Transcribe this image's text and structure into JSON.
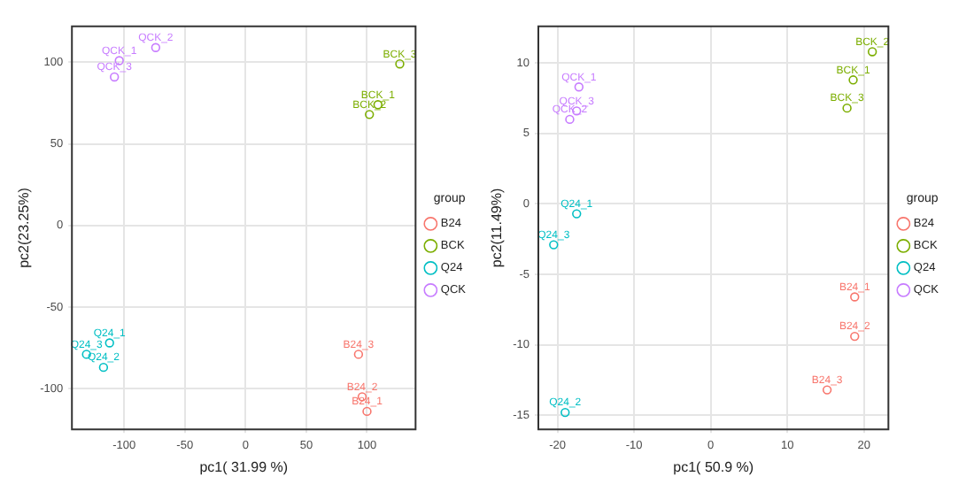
{
  "chart_data": [
    {
      "type": "scatter",
      "xlabel": "pc1( 31.99 %)",
      "ylabel": "pc2(23.25%)",
      "legend_title": "group",
      "legend": "right",
      "grid": true,
      "marker": "circle",
      "xlim": [
        -143,
        140
      ],
      "ylim": [
        -125,
        122
      ],
      "xticks": [
        -100,
        -50,
        0,
        50,
        100
      ],
      "yticks": [
        -100,
        -50,
        0,
        50,
        100
      ],
      "series": [
        {
          "name": "B24",
          "color": "#f8766d",
          "x": [
            100,
            96,
            93
          ],
          "values": [
            -114,
            -105,
            -79
          ]
        },
        {
          "name": "BCK",
          "color": "#7cae00",
          "x": [
            109,
            102,
            127
          ],
          "values": [
            74,
            68,
            99
          ]
        },
        {
          "name": "Q24",
          "color": "#00bfc4",
          "x": [
            -112,
            -117,
            -131
          ],
          "values": [
            -72,
            -87,
            -79
          ]
        },
        {
          "name": "QCK",
          "color": "#c77cff",
          "x": [
            -104,
            -74,
            -108
          ],
          "values": [
            101,
            109,
            91
          ]
        }
      ],
      "annotations": [
        {
          "text": "B24_1",
          "x": 100,
          "y": -114
        },
        {
          "text": "B24_2",
          "x": 96,
          "y": -105
        },
        {
          "text": "B24_3",
          "x": 93,
          "y": -79
        },
        {
          "text": "BCK_1",
          "x": 109,
          "y": 74
        },
        {
          "text": "BCK_2",
          "x": 102,
          "y": 68
        },
        {
          "text": "BCK_3",
          "x": 127,
          "y": 99
        },
        {
          "text": "Q24_1",
          "x": -112,
          "y": -72
        },
        {
          "text": "Q24_2",
          "x": -117,
          "y": -87
        },
        {
          "text": "Q24_3",
          "x": -131,
          "y": -79
        },
        {
          "text": "QCK_1",
          "x": -104,
          "y": 101
        },
        {
          "text": "QCK_2",
          "x": -74,
          "y": 109
        },
        {
          "text": "QCK_3",
          "x": -108,
          "y": 91
        }
      ]
    },
    {
      "type": "scatter",
      "xlabel": "pc1( 50.9 %)",
      "ylabel": "pc2(11.49%)",
      "legend_title": "group",
      "legend": "right",
      "grid": true,
      "marker": "circle",
      "xlim": [
        -22.5,
        23.2
      ],
      "ylim": [
        -16,
        12.6
      ],
      "xticks": [
        -20,
        -10,
        0,
        10,
        20
      ],
      "yticks": [
        -15,
        -10,
        -5,
        0,
        5,
        10
      ],
      "series": [
        {
          "name": "B24",
          "color": "#f8766d",
          "x": [
            18.8,
            18.8,
            15.2
          ],
          "values": [
            -6.6,
            -9.4,
            -13.2
          ]
        },
        {
          "name": "BCK",
          "color": "#7cae00",
          "x": [
            18.6,
            21.1,
            17.8
          ],
          "values": [
            8.8,
            10.8,
            6.8
          ]
        },
        {
          "name": "Q24",
          "color": "#00bfc4",
          "x": [
            -17.5,
            -19.0,
            -20.5
          ],
          "values": [
            -0.7,
            -14.8,
            -2.9
          ]
        },
        {
          "name": "QCK",
          "color": "#c77cff",
          "x": [
            -17.2,
            -18.4,
            -17.5
          ],
          "values": [
            8.3,
            6.0,
            6.6
          ]
        }
      ],
      "annotations": [
        {
          "text": "B24_1",
          "x": 18.8,
          "y": -6.6
        },
        {
          "text": "B24_2",
          "x": 18.8,
          "y": -9.4
        },
        {
          "text": "B24_3",
          "x": 15.2,
          "y": -13.2
        },
        {
          "text": "BCK_1",
          "x": 18.6,
          "y": 8.8
        },
        {
          "text": "BCK_2",
          "x": 21.1,
          "y": 10.8
        },
        {
          "text": "BCK_3",
          "x": 17.8,
          "y": 6.8
        },
        {
          "text": "Q24_1",
          "x": -17.5,
          "y": -0.7
        },
        {
          "text": "Q24_2",
          "x": -19.0,
          "y": -14.8
        },
        {
          "text": "Q24_3",
          "x": -20.5,
          "y": -2.9
        },
        {
          "text": "QCK_1",
          "x": -17.2,
          "y": 8.3
        },
        {
          "text": "QCK_2",
          "x": -18.4,
          "y": 6.0
        },
        {
          "text": "QCK_3",
          "x": -17.5,
          "y": 6.6
        }
      ]
    }
  ]
}
